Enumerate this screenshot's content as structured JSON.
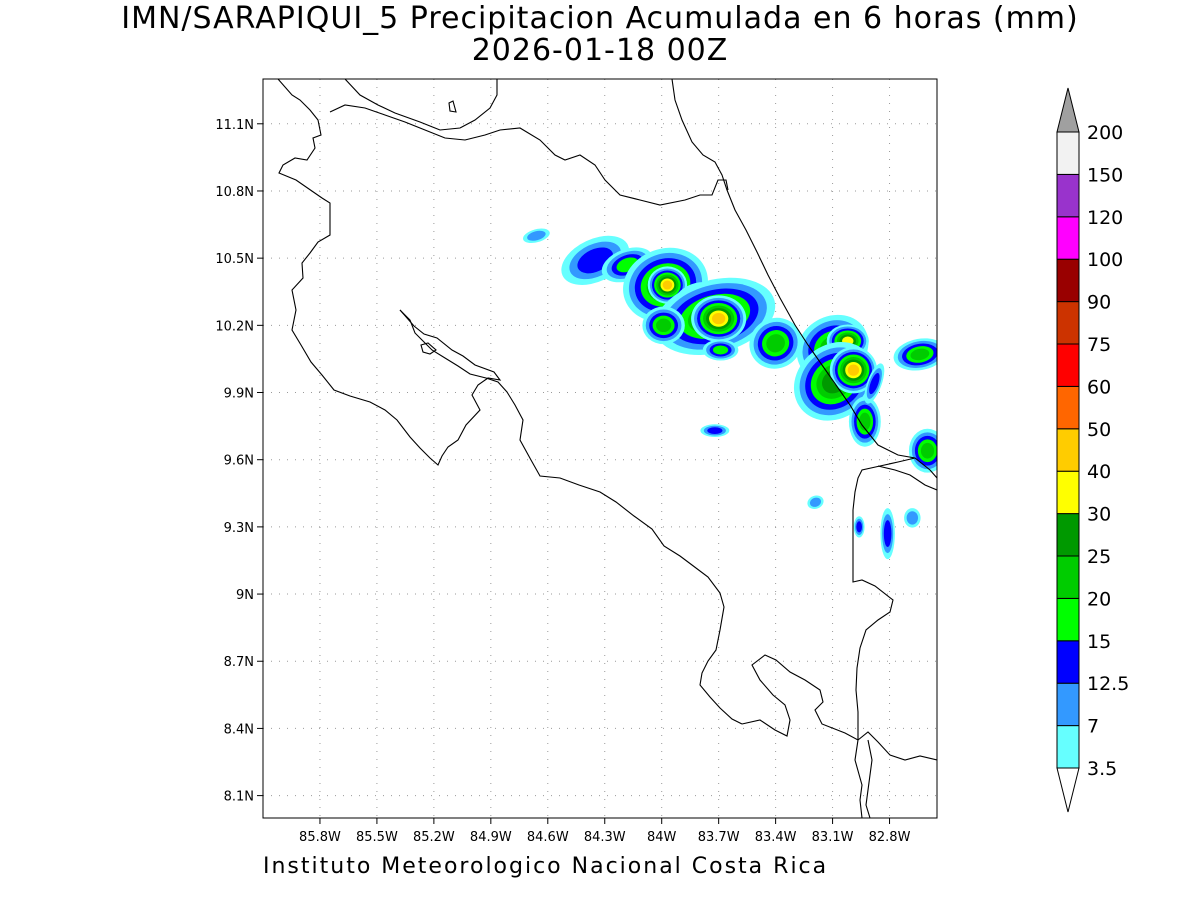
{
  "title": {
    "line1": "IMN/SARAPIQUI_5 Precipitacion Acumulada en 6 horas (mm)",
    "line2": "2026-01-18 00Z"
  },
  "footer": {
    "credit": "Instituto Meteorologico Nacional Costa Rica"
  },
  "map": {
    "lon_range": [
      -86.1,
      -82.55
    ],
    "lat_range": [
      8.0,
      11.3
    ],
    "grid": true,
    "coastlines": true,
    "x_ticks": [
      {
        "value": -85.8,
        "label": "85.8W"
      },
      {
        "value": -85.5,
        "label": "85.5W"
      },
      {
        "value": -85.2,
        "label": "85.2W"
      },
      {
        "value": -84.9,
        "label": "84.9W"
      },
      {
        "value": -84.6,
        "label": "84.6W"
      },
      {
        "value": -84.3,
        "label": "84.3W"
      },
      {
        "value": -84.0,
        "label": "84W"
      },
      {
        "value": -83.7,
        "label": "83.7W"
      },
      {
        "value": -83.4,
        "label": "83.4W"
      },
      {
        "value": -83.1,
        "label": "83.1W"
      },
      {
        "value": -82.8,
        "label": "82.8W"
      }
    ],
    "y_ticks": [
      {
        "value": 8.1,
        "label": "8.1N"
      },
      {
        "value": 8.4,
        "label": "8.4N"
      },
      {
        "value": 8.7,
        "label": "8.7N"
      },
      {
        "value": 9.0,
        "label": "9N"
      },
      {
        "value": 9.3,
        "label": "9.3N"
      },
      {
        "value": 9.6,
        "label": "9.6N"
      },
      {
        "value": 9.9,
        "label": "9.9N"
      },
      {
        "value": 10.2,
        "label": "10.2N"
      },
      {
        "value": 10.5,
        "label": "10.5N"
      },
      {
        "value": 10.8,
        "label": "10.8N"
      },
      {
        "value": 11.1,
        "label": "11.1N"
      }
    ]
  },
  "legend": {
    "units": "mm",
    "labels": [
      "3.5",
      "7",
      "12.5",
      "15",
      "20",
      "25",
      "30",
      "40",
      "50",
      "60",
      "75",
      "90",
      "100",
      "120",
      "150",
      "200"
    ],
    "colors": [
      "#66ffff",
      "#3399ff",
      "#0000ff",
      "#00ff00",
      "#00cc00",
      "#009900",
      "#ffff00",
      "#ffcc00",
      "#ff6600",
      "#ff0000",
      "#cc3300",
      "#990000",
      "#ff00ff",
      "#9933cc",
      "#f2f2f2"
    ],
    "top_arrow_color": "#a0a0a0",
    "bottom_arrow_color": "#ffffff"
  },
  "precip_cells": [
    {
      "lon": -84.35,
      "lat": 10.49,
      "level": 12.5,
      "rx": 0.1,
      "ry": 0.05,
      "angle": -25
    },
    {
      "lon": -84.18,
      "lat": 10.47,
      "level": 15,
      "rx": 0.06,
      "ry": 0.03,
      "angle": -20
    },
    {
      "lon": -83.98,
      "lat": 10.38,
      "level": 25,
      "rx": 0.07,
      "ry": 0.05,
      "angle": -20
    },
    {
      "lon": -83.97,
      "lat": 10.38,
      "level": 40,
      "rx": 0.025,
      "ry": 0.02,
      "angle": 0
    },
    {
      "lon": -83.82,
      "lat": 10.33,
      "level": 12.5,
      "rx": 0.06,
      "ry": 0.03,
      "angle": -20
    },
    {
      "lon": -83.72,
      "lat": 10.24,
      "level": 25,
      "rx": 0.1,
      "ry": 0.05,
      "angle": -15
    },
    {
      "lon": -83.7,
      "lat": 10.23,
      "level": 40,
      "rx": 0.035,
      "ry": 0.025,
      "angle": 0
    },
    {
      "lon": -83.99,
      "lat": 10.2,
      "level": 20,
      "rx": 0.04,
      "ry": 0.03,
      "angle": 0
    },
    {
      "lon": -83.69,
      "lat": 10.09,
      "level": 15,
      "rx": 0.04,
      "ry": 0.02,
      "angle": 0
    },
    {
      "lon": -83.4,
      "lat": 10.12,
      "level": 20,
      "rx": 0.05,
      "ry": 0.04,
      "angle": -30
    },
    {
      "lon": -83.1,
      "lat": 10.1,
      "level": 20,
      "rx": 0.07,
      "ry": 0.05,
      "angle": -30
    },
    {
      "lon": -83.02,
      "lat": 10.13,
      "level": 30,
      "rx": 0.03,
      "ry": 0.02,
      "angle": 0
    },
    {
      "lon": -83.09,
      "lat": 9.95,
      "level": 25,
      "rx": 0.07,
      "ry": 0.05,
      "angle": -40
    },
    {
      "lon": -82.99,
      "lat": 10.0,
      "level": 40,
      "rx": 0.03,
      "ry": 0.025,
      "angle": 0
    },
    {
      "lon": -82.93,
      "lat": 9.77,
      "level": 20,
      "rx": 0.03,
      "ry": 0.04,
      "angle": 0
    },
    {
      "lon": -82.88,
      "lat": 9.94,
      "level": 12.5,
      "rx": 0.02,
      "ry": 0.05,
      "angle": 20
    },
    {
      "lon": -82.64,
      "lat": 10.07,
      "level": 20,
      "rx": 0.05,
      "ry": 0.025,
      "angle": -10
    },
    {
      "lon": -82.6,
      "lat": 9.64,
      "level": 20,
      "rx": 0.035,
      "ry": 0.035,
      "angle": 0
    },
    {
      "lon": -83.72,
      "lat": 9.73,
      "level": 12.5,
      "rx": 0.04,
      "ry": 0.015,
      "angle": 0
    },
    {
      "lon": -82.81,
      "lat": 9.27,
      "level": 12.5,
      "rx": 0.02,
      "ry": 0.06,
      "angle": 0
    },
    {
      "lon": -82.96,
      "lat": 9.3,
      "level": 12.5,
      "rx": 0.015,
      "ry": 0.025,
      "angle": 0
    },
    {
      "lon": -82.68,
      "lat": 9.34,
      "level": 7,
      "rx": 0.03,
      "ry": 0.03,
      "angle": 0
    },
    {
      "lon": -83.19,
      "lat": 9.41,
      "level": 7,
      "rx": 0.03,
      "ry": 0.02,
      "angle": -20
    },
    {
      "lon": -84.66,
      "lat": 10.6,
      "level": 7,
      "rx": 0.05,
      "ry": 0.02,
      "angle": -15
    }
  ]
}
